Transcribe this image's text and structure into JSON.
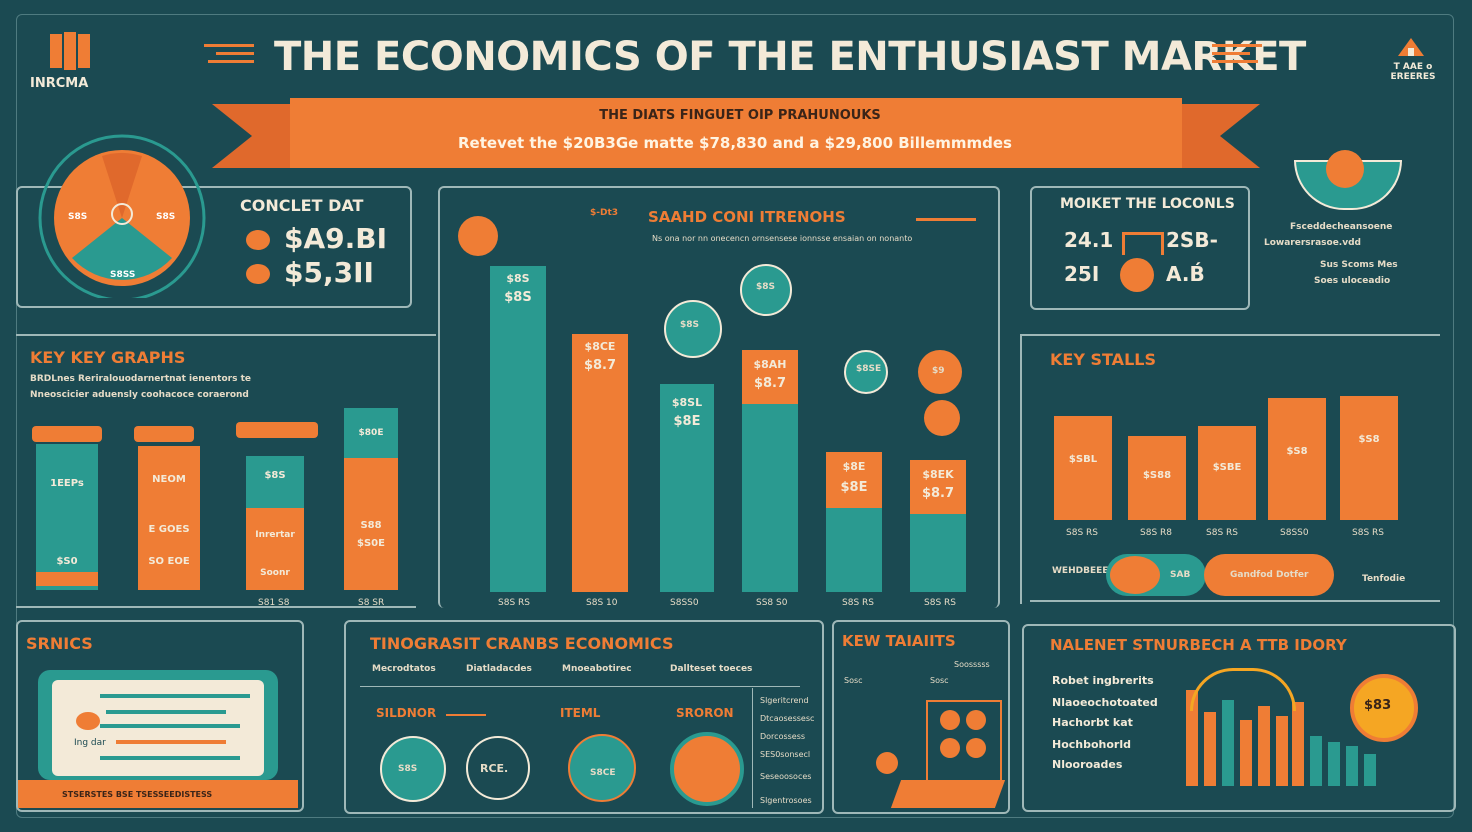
{
  "header": {
    "title": "THE ECONOMICS OF THE ENTHUSIAST MARKET",
    "logo_text": "INRCMA",
    "right_logo_text": "T AAE o EREERES",
    "ribbon_line1": "THE DIATS FINGUET OIP PRAHUNOUKS",
    "ribbon_line2": "Retevet the $20B3Ge matte $78,830 and a $29,800 Billemmmdes"
  },
  "left_top": {
    "heading": "CONCLET DAT",
    "values": [
      "$A9.BI",
      "$5,3II"
    ],
    "donut_labels": [
      "S8S",
      "S8S",
      "S8SS"
    ]
  },
  "center": {
    "heading": "SAAHD CONI ITRENOHS",
    "subtitle": "Ns ona nor nn onecencn ornsensese ionnsse ensaian on nonanto",
    "top_label": "$-Dt3",
    "icon_labels": [
      "$8S",
      "$8S",
      "$9",
      "$8SE"
    ],
    "bars": [
      {
        "label": "$8S",
        "value": "$8S",
        "axis": "S8S RS"
      },
      {
        "label": "$8CE",
        "value": "$8.7",
        "axis": "S8S 10"
      },
      {
        "label": "$8SL",
        "value": "$8E",
        "axis": "S8SS0"
      },
      {
        "label": "$8AH",
        "value": "$8.7",
        "axis": "SS8 S0"
      },
      {
        "label": "$8E",
        "value": "$8E",
        "axis": "S8S RS"
      },
      {
        "label": "$8EK",
        "value": "$8.7",
        "axis": "S8S RS"
      }
    ]
  },
  "key_graphs": {
    "heading": "KEY KEY GRAPHS",
    "desc_line1": "BRDLnes Reriralouodarnertnat ienentors te",
    "desc_line2": "Nneoscicier aduensly coohacoce coraerond",
    "cards": [
      {
        "top": "1EEPs",
        "mid": "",
        "bottom": "$S0",
        "axis": ""
      },
      {
        "top": "NEOM",
        "mid": "E GOES",
        "bottom": "SO EOE",
        "axis": ""
      },
      {
        "top": "$8S",
        "mid": "Inrertar",
        "bottom": "Soonr",
        "axis": "S81 S8"
      },
      {
        "top": "$80E",
        "mid": "S88",
        "bottom": "$S0E",
        "axis": "S8 SR"
      }
    ]
  },
  "right_top": {
    "heading": "MOIKET THE LOCONLS",
    "numbers": [
      "24.1",
      "25I",
      "2SB-",
      "A.B́"
    ],
    "notes": [
      "Fsceddecheansoene",
      "Lowarersrasoe.vdd",
      "Sus Scoms Mes",
      "Soes uloceadio"
    ]
  },
  "key_stalls": {
    "heading": "KEY STALLS",
    "bars": [
      {
        "label": "$SBL",
        "axis": "S8S RS"
      },
      {
        "label": "$S88",
        "axis": "S8S R8"
      },
      {
        "label": "$SBE",
        "axis": "S8S RS"
      },
      {
        "label": "$S8",
        "axis": "S8SS0"
      },
      {
        "label": "$S8",
        "axis": "S8S RS"
      }
    ],
    "pill_label": "WEHDBEEE",
    "pill_value": "SAB",
    "pill_text": "Gandfod Dotfer",
    "pill_right": "Tenfodie"
  },
  "strats": {
    "heading": "SRNICS",
    "screen_label": "Ing dar",
    "caption": "STSERSTES BSE TSESSEEDISTESS"
  },
  "center_bottom": {
    "heading": "TINOGRASIT CRANBS ECONOMICS",
    "columns": [
      "Mecrodtatos",
      "Diatladacdes",
      "Mnoeabotirec",
      "Dallteset toeces"
    ],
    "sub_labels": [
      "SILDNOR",
      "ITEML",
      "SRORON"
    ],
    "circle_values": [
      "S8S",
      "RCE.",
      "S8CE"
    ],
    "list_items": [
      "Slgeritcrend",
      "Dtcaosessesc",
      "Dorcossess",
      "SES0sonsecl",
      "Seseoosoces",
      "Slgentrosoes"
    ]
  },
  "key_traits": {
    "heading": "KEW TAIAIITS",
    "labels": [
      "Sosc",
      "Sosc",
      "Soosssss"
    ]
  },
  "right_bottom": {
    "heading": "NALENET STNURBECH A TTB IDORY",
    "items": [
      "Robet ingbrerits",
      "Nlaoeochotoated",
      "Hachorbt kat",
      "Hochbohorld",
      "Nlooroades"
    ],
    "badge": "$83"
  },
  "colors": {
    "background": "#1b4a52",
    "orange": "#ef7d35",
    "teal": "#2a9a90",
    "cream": "#f3ead8"
  }
}
